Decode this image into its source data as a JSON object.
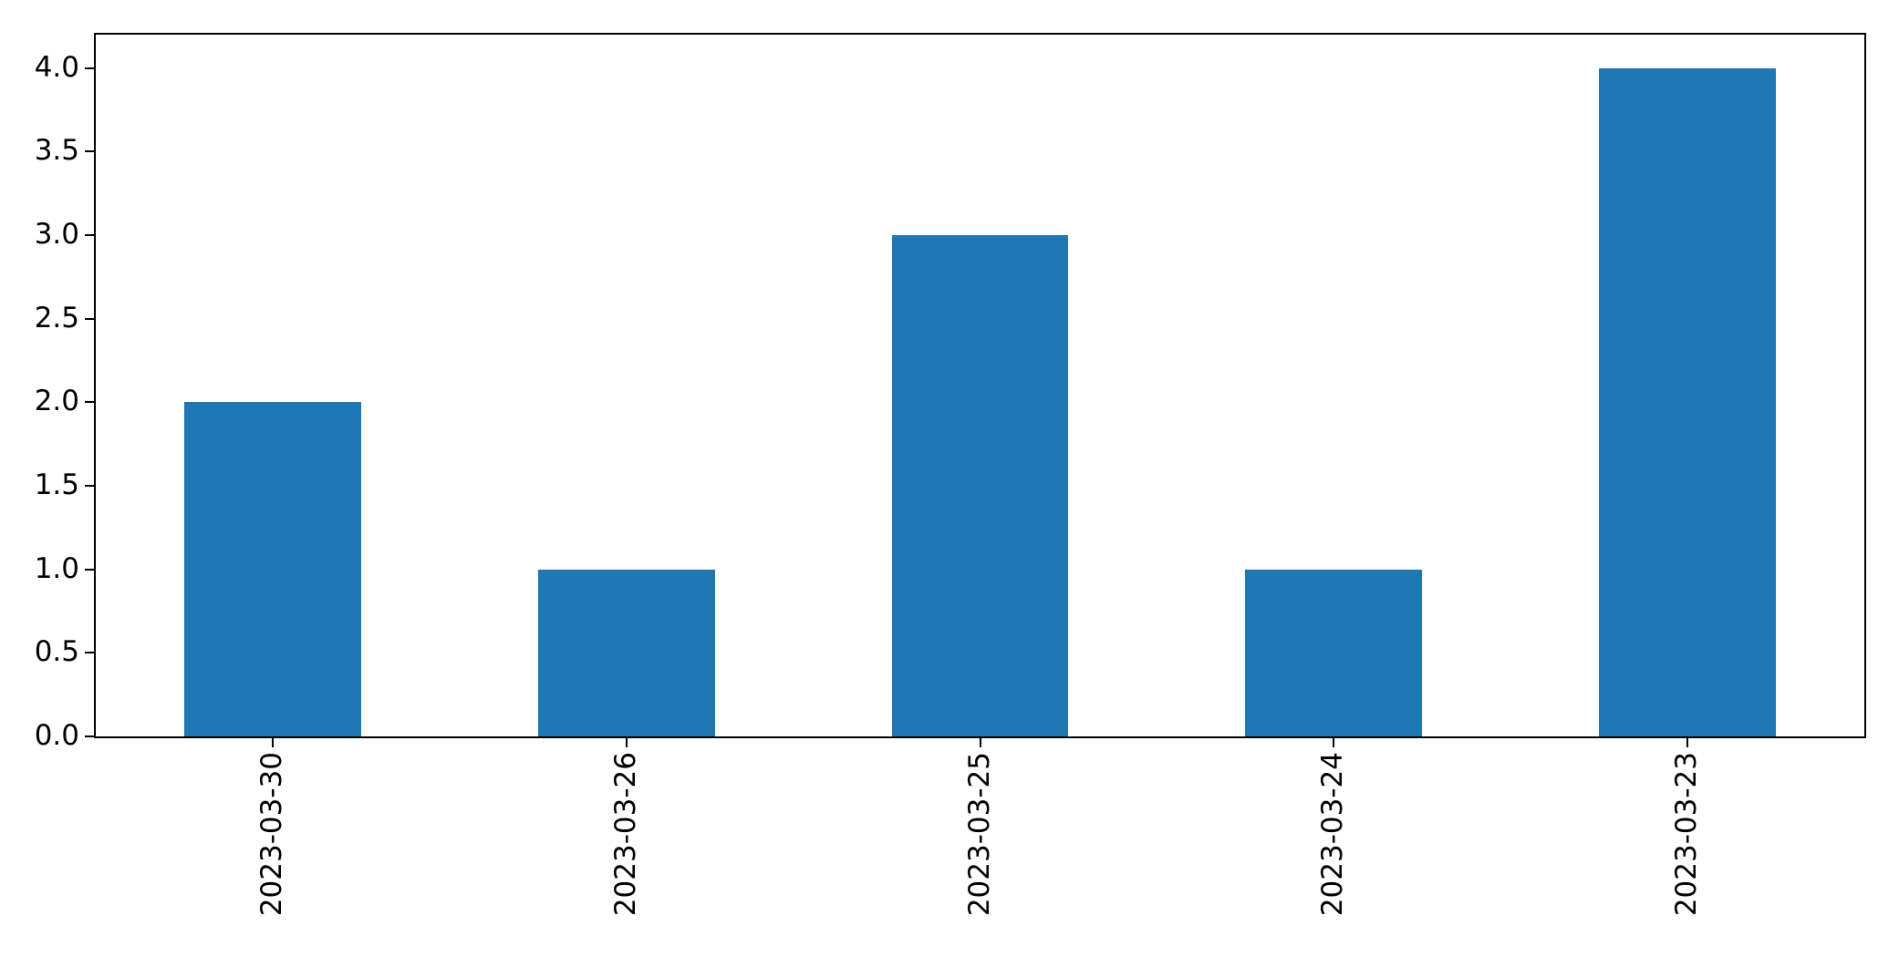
{
  "figure": {
    "background_color": "#ffffff",
    "axis_color": "#000000",
    "text_color": "#000000"
  },
  "chart_data": {
    "type": "bar",
    "categories": [
      "2023-03-30",
      "2023-03-26",
      "2023-03-25",
      "2023-03-24",
      "2023-03-23"
    ],
    "values": [
      2,
      1,
      3,
      1,
      4
    ],
    "title": "",
    "xlabel": "",
    "ylabel": "",
    "ylim": [
      0,
      4.2
    ],
    "yticks": [
      0.0,
      0.5,
      1.0,
      1.5,
      2.0,
      2.5,
      3.0,
      3.5,
      4.0
    ],
    "ytick_label_decimals": 1,
    "xtick_rotation_deg": 90,
    "bar_color": "#1f77b4",
    "bar_width_fraction": 0.5,
    "grid": false,
    "legend": "none"
  }
}
